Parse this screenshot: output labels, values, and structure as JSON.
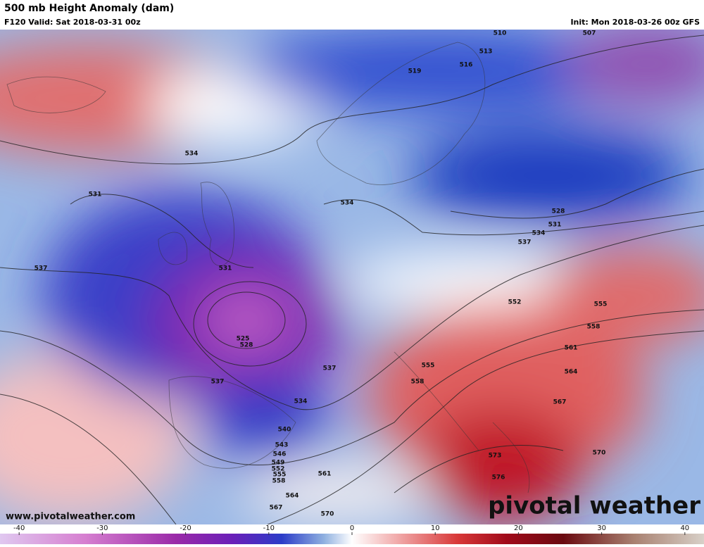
{
  "header": {
    "title": "500 mb Height Anomaly (dam)",
    "valid": "F120 Valid: Sat 2018-03-31 00z",
    "init": "Init: Mon 2018-03-26 00z GFS"
  },
  "contour_labels": [
    "510",
    "513",
    "516",
    "519",
    "507",
    "534",
    "531",
    "534",
    "528",
    "531",
    "534",
    "537",
    "537",
    "531",
    "525",
    "528",
    "537",
    "537",
    "534",
    "540",
    "543",
    "546",
    "549",
    "552",
    "555",
    "558",
    "561",
    "564",
    "567",
    "570",
    "552",
    "555",
    "558",
    "561",
    "564",
    "567",
    "570",
    "573",
    "576",
    "555",
    "558"
  ],
  "footer": {
    "website": "www.pivotalweather.com",
    "logo": "pivotal weather"
  },
  "colorbar": {
    "lim": [
      -42.3,
      42.3
    ],
    "ticks": [
      -40,
      -30,
      -20,
      -10,
      0,
      10,
      20,
      30,
      40
    ]
  }
}
